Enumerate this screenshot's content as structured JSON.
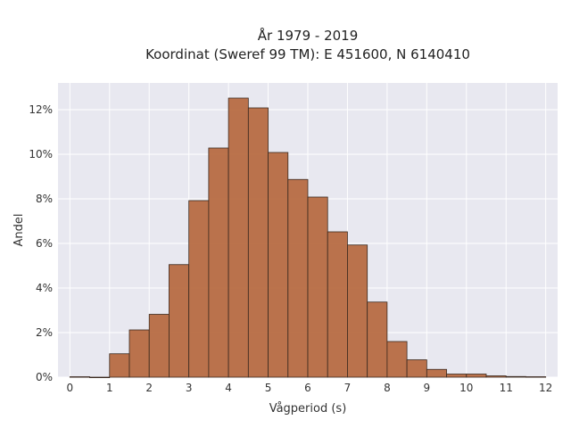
{
  "chart_data": {
    "type": "bar",
    "title_line1": "År 1979 - 2019",
    "title_line2": "Koordinat (Sweref 99 TM): E 451600, N 6140410",
    "xlabel": "Vågperiod (s)",
    "ylabel": "Andel",
    "bin_width": 0.5,
    "bin_starts": [
      0,
      0.5,
      1,
      1.5,
      2,
      2.5,
      3,
      3.5,
      4,
      4.5,
      5,
      5.5,
      6,
      6.5,
      7,
      7.5,
      8,
      8.5,
      9,
      9.5,
      10,
      10.5,
      11,
      11.5
    ],
    "values": [
      0.02,
      0.0,
      1.05,
      2.12,
      2.82,
      5.05,
      7.92,
      10.28,
      12.52,
      12.08,
      10.08,
      8.87,
      8.08,
      6.52,
      5.93,
      3.37,
      1.6,
      0.78,
      0.35,
      0.14,
      0.14,
      0.06,
      0.03,
      0.02
    ],
    "xlim": [
      -0.3,
      12.3
    ],
    "ylim": [
      0,
      13.2
    ],
    "xticks": [
      0,
      1,
      2,
      3,
      4,
      5,
      6,
      7,
      8,
      9,
      10,
      11,
      12
    ],
    "xtick_labels": [
      "0",
      "1",
      "2",
      "3",
      "4",
      "5",
      "6",
      "7",
      "8",
      "9",
      "10",
      "11",
      "12"
    ],
    "yticks": [
      0,
      2,
      4,
      6,
      8,
      10,
      12
    ],
    "ytick_labels": [
      "0%",
      "2%",
      "4%",
      "6%",
      "8%",
      "10%",
      "12%"
    ],
    "grid": true,
    "bar_color": "#b5653a",
    "bar_edge_color": "#3b2a20",
    "background_color": "#e8e8f0",
    "grid_color": "#ffffff"
  }
}
